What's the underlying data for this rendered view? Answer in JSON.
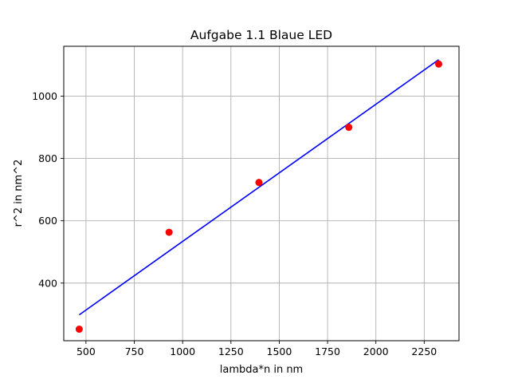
{
  "chart_data": {
    "type": "scatter",
    "title": "Aufgabe 1.1 Blaue LED",
    "xlabel": "lambda*n in nm",
    "ylabel": "r^2 in nm^2",
    "xlim": [
      385,
      2430
    ],
    "ylim": [
      215,
      1160
    ],
    "grid": true,
    "x_ticks": [
      500,
      750,
      1000,
      1250,
      1500,
      1750,
      2000,
      2250
    ],
    "y_ticks": [
      400,
      600,
      800,
      1000
    ],
    "series": [
      {
        "kind": "points",
        "color": "#ff0000",
        "x": [
          465,
          930,
          1395,
          1860,
          2325
        ],
        "y": [
          252,
          563,
          723,
          900,
          1103
        ]
      },
      {
        "kind": "line",
        "color": "#0000ff",
        "x": [
          465,
          2325
        ],
        "y": [
          298,
          1117
        ]
      }
    ]
  }
}
